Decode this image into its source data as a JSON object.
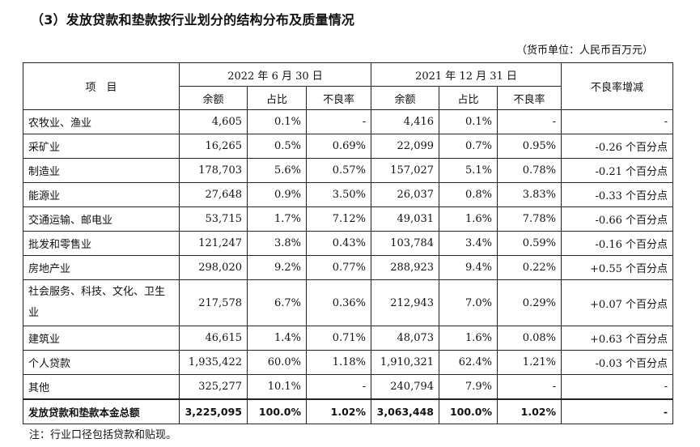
{
  "title": "（3）发放贷款和垫款按行业划分的结构分布及质量情况",
  "unit": "（货币单位：人民币百万元）",
  "header": {
    "item": "项　目",
    "period1": "2022 年 6 月 30 日",
    "period2": "2021 年 12 月 31 日",
    "change": "不良率增减",
    "balance": "余额",
    "share": "占比",
    "npl": "不良率"
  },
  "rows": [
    {
      "name": "农牧业、渔业",
      "b1": "4,605",
      "s1": "0.1%",
      "n1": "-",
      "b2": "4,416",
      "s2": "0.1%",
      "n2": "-",
      "chg": "-"
    },
    {
      "name": "采矿业",
      "b1": "16,265",
      "s1": "0.5%",
      "n1": "0.69%",
      "b2": "22,099",
      "s2": "0.7%",
      "n2": "0.95%",
      "chg": "-0.26 个百分点"
    },
    {
      "name": "制造业",
      "b1": "178,703",
      "s1": "5.6%",
      "n1": "0.57%",
      "b2": "157,027",
      "s2": "5.1%",
      "n2": "0.78%",
      "chg": "-0.21 个百分点"
    },
    {
      "name": "能源业",
      "b1": "27,648",
      "s1": "0.9%",
      "n1": "3.50%",
      "b2": "26,037",
      "s2": "0.8%",
      "n2": "3.83%",
      "chg": "-0.33 个百分点"
    },
    {
      "name": "交通运输、邮电业",
      "b1": "53,715",
      "s1": "1.7%",
      "n1": "7.12%",
      "b2": "49,031",
      "s2": "1.6%",
      "n2": "7.78%",
      "chg": "-0.66 个百分点"
    },
    {
      "name": "批发和零售业",
      "b1": "121,247",
      "s1": "3.8%",
      "n1": "0.43%",
      "b2": "103,784",
      "s2": "3.4%",
      "n2": "0.59%",
      "chg": "-0.16 个百分点"
    },
    {
      "name": "房地产业",
      "b1": "298,020",
      "s1": "9.2%",
      "n1": "0.77%",
      "b2": "288,923",
      "s2": "9.4%",
      "n2": "0.22%",
      "chg": "+0.55 个百分点"
    },
    {
      "name": "社会服务、科技、文化、卫生业",
      "b1": "217,578",
      "s1": "6.7%",
      "n1": "0.36%",
      "b2": "212,943",
      "s2": "7.0%",
      "n2": "0.29%",
      "chg": "+0.07 个百分点"
    },
    {
      "name": "建筑业",
      "b1": "46,615",
      "s1": "1.4%",
      "n1": "0.71%",
      "b2": "48,073",
      "s2": "1.6%",
      "n2": "0.08%",
      "chg": "+0.63 个百分点"
    },
    {
      "name": "个人贷款",
      "b1": "1,935,422",
      "s1": "60.0%",
      "n1": "1.18%",
      "b2": "1,910,321",
      "s2": "62.4%",
      "n2": "1.21%",
      "chg": "-0.03 个百分点"
    },
    {
      "name": "其他",
      "b1": "325,277",
      "s1": "10.1%",
      "n1": "-",
      "b2": "240,794",
      "s2": "7.9%",
      "n2": "-",
      "chg": "-"
    }
  ],
  "total": {
    "name": "发放贷款和垫款本金总额",
    "b1": "3,225,095",
    "s1": "100.0%",
    "n1": "1.02%",
    "b2": "3,063,448",
    "s2": "100.0%",
    "n2": "1.02%",
    "chg": "-"
  },
  "note": "注：行业口径包括贷款和贴现。"
}
